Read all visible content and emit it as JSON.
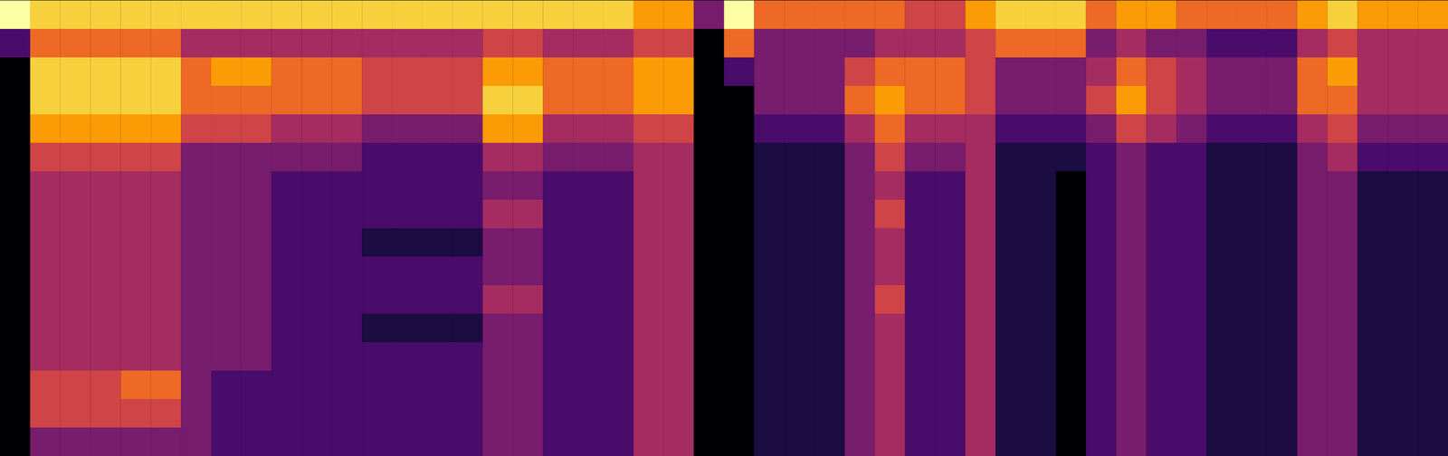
{
  "chart_data": {
    "type": "heatmap",
    "color": "inferno",
    "tick_labels": false,
    "values": [
      [
        9,
        8,
        8,
        8,
        8,
        8,
        8,
        8,
        8,
        8,
        8,
        8,
        8,
        8,
        8,
        8,
        8,
        8,
        8,
        8,
        8,
        7,
        7,
        3,
        9,
        6,
        6,
        6,
        6,
        6,
        5,
        5,
        7,
        8,
        8,
        8,
        6,
        7,
        7,
        6,
        6,
        6,
        6,
        7,
        8,
        7,
        7,
        7
      ],
      [
        2,
        6,
        6,
        6,
        6,
        6,
        4,
        4,
        4,
        4,
        4,
        4,
        4,
        4,
        4,
        4,
        5,
        5,
        4,
        4,
        4,
        5,
        5,
        0,
        6,
        3,
        3,
        3,
        3,
        4,
        4,
        4,
        5,
        6,
        6,
        6,
        3,
        4,
        3,
        3,
        2,
        2,
        2,
        4,
        5,
        4,
        4,
        4
      ],
      [
        0,
        8,
        8,
        8,
        8,
        8,
        6,
        7,
        7,
        6,
        6,
        6,
        5,
        5,
        5,
        5,
        7,
        7,
        6,
        6,
        6,
        7,
        7,
        0,
        2,
        3,
        3,
        3,
        5,
        6,
        6,
        6,
        5,
        3,
        3,
        3,
        4,
        6,
        5,
        4,
        3,
        3,
        3,
        6,
        7,
        4,
        4,
        4
      ],
      [
        0,
        8,
        8,
        8,
        8,
        8,
        6,
        6,
        6,
        6,
        6,
        6,
        5,
        5,
        5,
        5,
        8,
        8,
        6,
        6,
        6,
        7,
        7,
        0,
        0,
        3,
        3,
        3,
        6,
        7,
        6,
        6,
        5,
        3,
        3,
        3,
        5,
        7,
        5,
        4,
        3,
        3,
        3,
        6,
        6,
        4,
        4,
        4
      ],
      [
        0,
        7,
        7,
        7,
        7,
        7,
        5,
        5,
        5,
        4,
        4,
        4,
        3,
        3,
        3,
        3,
        7,
        7,
        4,
        4,
        4,
        5,
        5,
        0,
        0,
        2,
        2,
        2,
        4,
        6,
        4,
        4,
        4,
        2,
        2,
        2,
        3,
        5,
        4,
        3,
        2,
        2,
        2,
        4,
        5,
        3,
        3,
        3
      ],
      [
        0,
        5,
        5,
        5,
        5,
        5,
        3,
        3,
        3,
        3,
        3,
        3,
        2,
        2,
        2,
        2,
        4,
        4,
        3,
        3,
        3,
        4,
        4,
        0,
        0,
        1,
        1,
        1,
        3,
        5,
        3,
        3,
        4,
        1,
        1,
        1,
        2,
        3,
        2,
        2,
        1,
        1,
        1,
        3,
        4,
        2,
        2,
        2
      ],
      [
        0,
        4,
        4,
        4,
        4,
        4,
        3,
        3,
        3,
        2,
        2,
        2,
        2,
        2,
        2,
        2,
        3,
        3,
        2,
        2,
        2,
        4,
        4,
        0,
        0,
        1,
        1,
        1,
        3,
        4,
        2,
        2,
        4,
        1,
        1,
        0,
        2,
        3,
        2,
        2,
        1,
        1,
        1,
        3,
        3,
        1,
        1,
        1
      ],
      [
        0,
        4,
        4,
        4,
        4,
        4,
        3,
        3,
        3,
        2,
        2,
        2,
        2,
        2,
        2,
        2,
        4,
        4,
        2,
        2,
        2,
        4,
        4,
        0,
        0,
        1,
        1,
        1,
        3,
        5,
        2,
        2,
        4,
        1,
        1,
        0,
        2,
        3,
        2,
        2,
        1,
        1,
        1,
        3,
        3,
        1,
        1,
        1
      ],
      [
        0,
        4,
        4,
        4,
        4,
        4,
        3,
        3,
        3,
        2,
        2,
        2,
        1,
        1,
        1,
        1,
        3,
        3,
        2,
        2,
        2,
        4,
        4,
        0,
        0,
        1,
        1,
        1,
        3,
        4,
        2,
        2,
        4,
        1,
        1,
        0,
        2,
        3,
        2,
        2,
        1,
        1,
        1,
        3,
        3,
        1,
        1,
        1
      ],
      [
        0,
        4,
        4,
        4,
        4,
        4,
        3,
        3,
        3,
        2,
        2,
        2,
        2,
        2,
        2,
        2,
        3,
        3,
        2,
        2,
        2,
        4,
        4,
        0,
        0,
        1,
        1,
        1,
        3,
        4,
        2,
        2,
        4,
        1,
        1,
        0,
        2,
        3,
        2,
        2,
        1,
        1,
        1,
        3,
        3,
        1,
        1,
        1
      ],
      [
        0,
        4,
        4,
        4,
        4,
        4,
        3,
        3,
        3,
        2,
        2,
        2,
        2,
        2,
        2,
        2,
        4,
        4,
        2,
        2,
        2,
        4,
        4,
        0,
        0,
        1,
        1,
        1,
        3,
        5,
        2,
        2,
        4,
        1,
        1,
        0,
        2,
        3,
        2,
        2,
        1,
        1,
        1,
        3,
        3,
        1,
        1,
        1
      ],
      [
        0,
        4,
        4,
        4,
        4,
        4,
        3,
        3,
        3,
        2,
        2,
        2,
        1,
        1,
        1,
        1,
        3,
        3,
        2,
        2,
        2,
        4,
        4,
        0,
        0,
        1,
        1,
        1,
        3,
        4,
        2,
        2,
        4,
        1,
        1,
        0,
        2,
        3,
        2,
        2,
        1,
        1,
        1,
        3,
        3,
        1,
        1,
        1
      ],
      [
        0,
        4,
        4,
        4,
        4,
        4,
        3,
        3,
        3,
        2,
        2,
        2,
        2,
        2,
        2,
        2,
        3,
        3,
        2,
        2,
        2,
        4,
        4,
        0,
        0,
        1,
        1,
        1,
        3,
        4,
        2,
        2,
        4,
        1,
        1,
        0,
        2,
        3,
        2,
        2,
        1,
        1,
        1,
        3,
        3,
        1,
        1,
        1
      ],
      [
        0,
        5,
        5,
        5,
        6,
        6,
        3,
        2,
        2,
        2,
        2,
        2,
        2,
        2,
        2,
        2,
        3,
        3,
        2,
        2,
        2,
        4,
        4,
        0,
        0,
        1,
        1,
        1,
        3,
        4,
        2,
        2,
        4,
        1,
        1,
        0,
        2,
        3,
        2,
        2,
        1,
        1,
        1,
        3,
        3,
        1,
        1,
        1
      ],
      [
        0,
        5,
        5,
        5,
        5,
        5,
        3,
        2,
        2,
        2,
        2,
        2,
        2,
        2,
        2,
        2,
        3,
        3,
        2,
        2,
        2,
        4,
        4,
        0,
        0,
        1,
        1,
        1,
        3,
        4,
        2,
        2,
        4,
        1,
        1,
        0,
        2,
        3,
        2,
        2,
        1,
        1,
        1,
        3,
        3,
        1,
        1,
        1
      ],
      [
        0,
        3,
        3,
        3,
        3,
        3,
        3,
        2,
        2,
        2,
        2,
        2,
        2,
        2,
        2,
        2,
        3,
        3,
        2,
        2,
        2,
        4,
        4,
        0,
        0,
        1,
        1,
        1,
        3,
        4,
        2,
        2,
        4,
        1,
        1,
        0,
        2,
        3,
        2,
        2,
        1,
        1,
        1,
        3,
        3,
        1,
        1,
        1
      ]
    ]
  }
}
